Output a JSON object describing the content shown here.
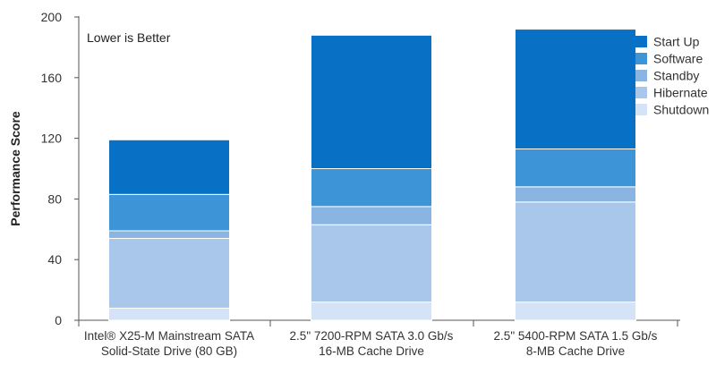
{
  "chart_data": {
    "type": "bar",
    "stacked": true,
    "title": "",
    "annotation": "Lower is Better",
    "xlabel": "",
    "ylabel": "Performance Score",
    "ylim": [
      0,
      200
    ],
    "yticks": [
      0,
      40,
      80,
      120,
      160,
      200
    ],
    "grid": false,
    "legend_position": "top-right",
    "categories": [
      [
        "Intel® X25-M Mainstream SATA",
        "Solid-State Drive (80 GB)"
      ],
      [
        "2.5\" 7200-RPM SATA 3.0 Gb/s",
        "16-MB Cache Drive"
      ],
      [
        "2.5\" 5400-RPM SATA 1.5 Gb/s",
        "8-MB Cache Drive"
      ]
    ],
    "series": [
      {
        "name": "Shutdown",
        "color": "#d4e3f5",
        "values": [
          8,
          12,
          12
        ]
      },
      {
        "name": "Hibernate",
        "color": "#a9c7ea",
        "values": [
          46,
          51,
          66
        ]
      },
      {
        "name": "Standby",
        "color": "#8ab5e3",
        "values": [
          5,
          12,
          10
        ]
      },
      {
        "name": "Software",
        "color": "#3d95d8",
        "values": [
          24,
          25,
          25
        ]
      },
      {
        "name": "Start Up",
        "color": "#0871c6",
        "values": [
          36,
          88,
          79
        ]
      }
    ]
  }
}
